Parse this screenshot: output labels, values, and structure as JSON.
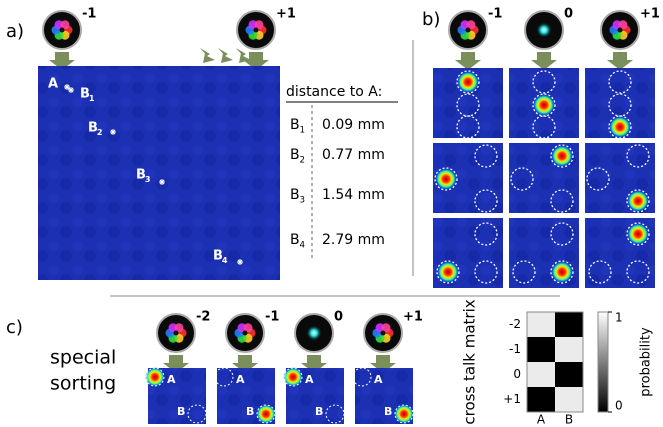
{
  "panel_a": {
    "label": "a)",
    "charges": [
      "-1",
      "+1"
    ],
    "spots": [
      {
        "name": "A"
      },
      {
        "name": "B",
        "sub": "1"
      },
      {
        "name": "B",
        "sub": "2"
      },
      {
        "name": "B",
        "sub": "3"
      },
      {
        "name": "B",
        "sub": "4"
      }
    ],
    "table": {
      "header": "distance to A:",
      "rows": [
        {
          "name": "B",
          "sub": "1",
          "distance": "0.09 mm"
        },
        {
          "name": "B",
          "sub": "2",
          "distance": "0.77 mm"
        },
        {
          "name": "B",
          "sub": "3",
          "distance": "1.54 mm"
        },
        {
          "name": "B",
          "sub": "4",
          "distance": "2.79 mm"
        }
      ]
    }
  },
  "panel_b": {
    "label": "b)",
    "charges": [
      "-1",
      "0",
      "+1"
    ]
  },
  "panel_c": {
    "label": "c)",
    "title": [
      "special",
      "sorting"
    ],
    "charges": [
      "-2",
      "-1",
      "0",
      "+1"
    ],
    "spot_labels": [
      "A",
      "B"
    ],
    "matrix": {
      "title": "cross talk matrix",
      "rows": [
        "-2",
        "-1",
        "0",
        "+1"
      ],
      "columns": [
        "A",
        "B"
      ],
      "values": [
        [
          1,
          0
        ],
        [
          0,
          1
        ],
        [
          1,
          0
        ],
        [
          0,
          1
        ]
      ],
      "colorbar": {
        "label": "probability",
        "lim": [
          0,
          1
        ],
        "ticks": [
          0,
          1
        ]
      }
    }
  }
}
